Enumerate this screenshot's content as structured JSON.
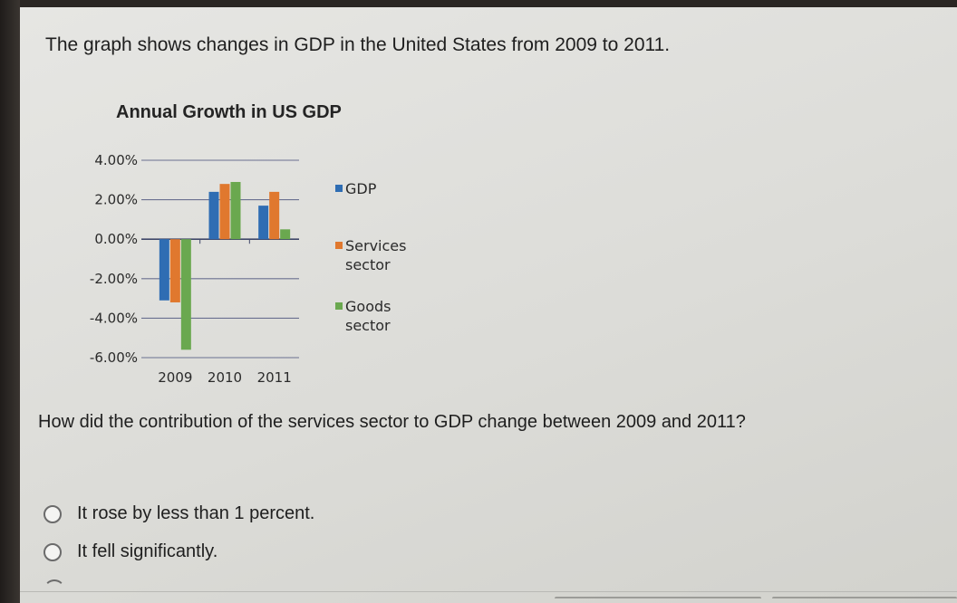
{
  "intro_text": "The graph shows changes in GDP in the United States from 2009 to 2011.",
  "chart_title": "Annual Growth in US GDP",
  "question_text": "How did the contribution of the services sector to GDP change between 2009 and 2011?",
  "options": [
    {
      "label": "It rose by less than 1 percent."
    },
    {
      "label": "It fell significantly."
    }
  ],
  "chart_data": {
    "type": "bar",
    "title": "Annual Growth in US GDP",
    "xlabel": "",
    "ylabel": "",
    "ylim": [
      -6,
      4
    ],
    "yticks": [
      4,
      2,
      0,
      -2,
      -4,
      -6
    ],
    "ytick_labels": [
      "4.00%",
      "2.00%",
      "0.00%",
      "-2.00%",
      "-4.00%",
      "-6.00%"
    ],
    "categories": [
      "2009",
      "2010",
      "2011"
    ],
    "series": [
      {
        "name": "GDP",
        "color": "#2f6db3",
        "values": [
          -3.1,
          2.4,
          1.7
        ]
      },
      {
        "name": "Services sector",
        "color": "#e0782e",
        "values": [
          -3.2,
          2.8,
          2.4
        ]
      },
      {
        "name": "Goods sector",
        "color": "#6aa84f",
        "values": [
          -5.6,
          2.9,
          0.5
        ]
      }
    ],
    "legend_entries": [
      {
        "lines": [
          "GDP"
        ],
        "color": "#2f6db3"
      },
      {
        "lines": [
          "Services",
          "sector"
        ],
        "color": "#e0782e"
      },
      {
        "lines": [
          "Goods",
          "sector"
        ],
        "color": "#6aa84f"
      }
    ],
    "grid": true,
    "legend_position": "right"
  }
}
